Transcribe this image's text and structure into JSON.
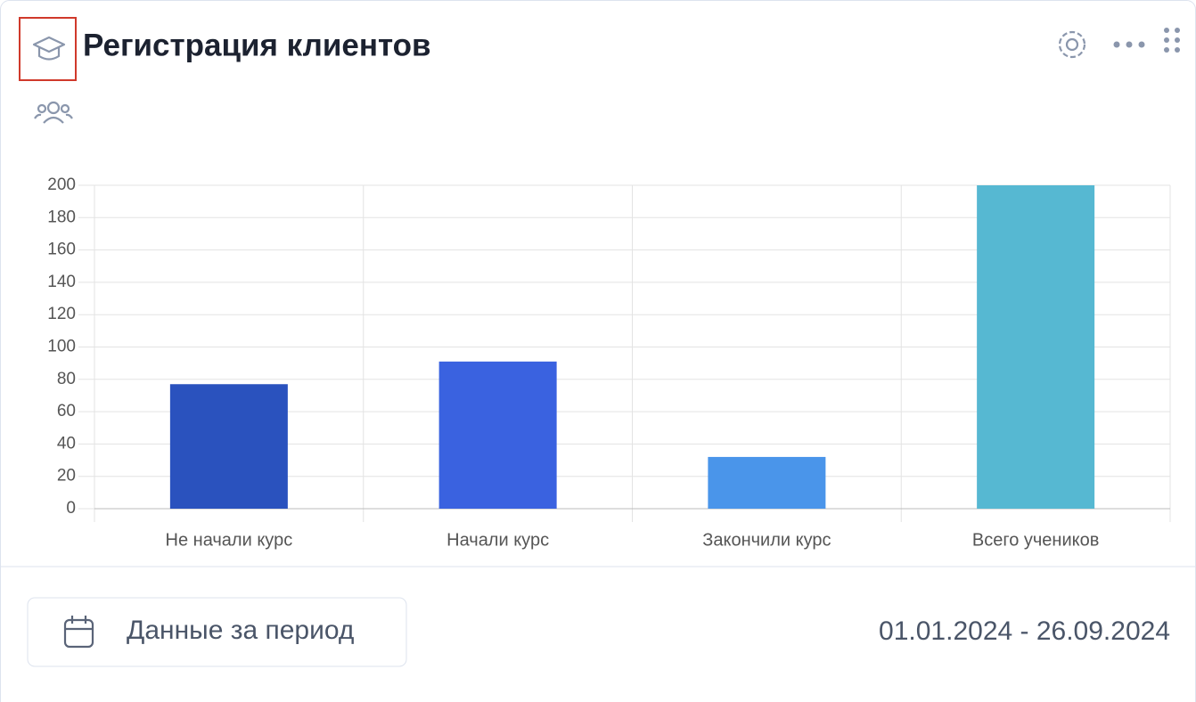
{
  "header": {
    "title": "Регистрация клиентов"
  },
  "chart_data": {
    "type": "bar",
    "categories": [
      "Не начали курс",
      "Начали курс",
      "Закончили курс",
      "Всего учеников"
    ],
    "values": [
      77,
      91,
      32,
      200
    ],
    "colors": [
      "#2a52be",
      "#3a62e0",
      "#4a95ea",
      "#56b8d2"
    ],
    "ylim": [
      0,
      200
    ],
    "yticks": [
      0,
      20,
      40,
      60,
      80,
      100,
      120,
      140,
      160,
      180,
      200
    ],
    "grid": true
  },
  "footer": {
    "button": "Данные за период",
    "period": "01.01.2024 - 26.09.2024"
  }
}
